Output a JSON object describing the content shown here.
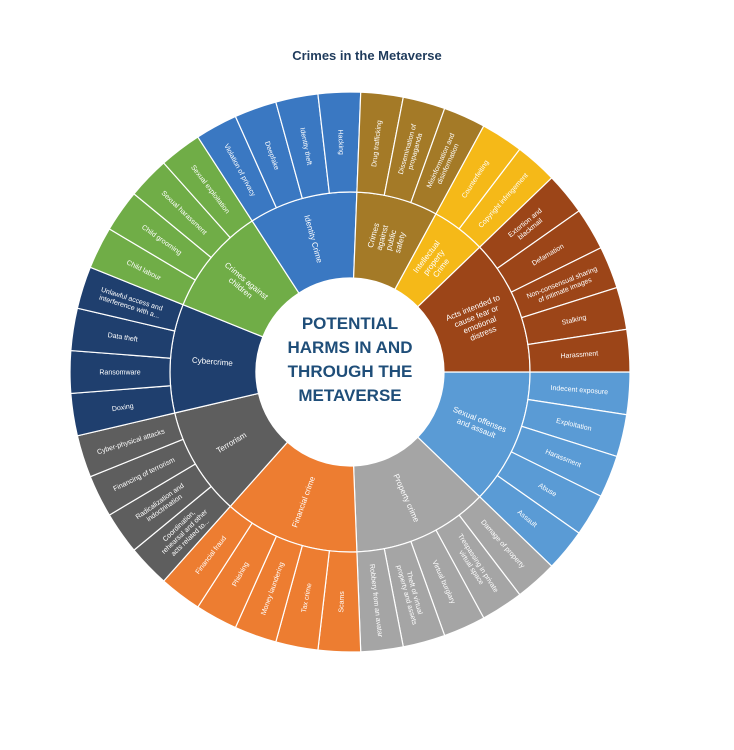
{
  "title": "Crimes in the Metaverse",
  "center_lines": [
    "POTENTIAL",
    "HARMS IN AND",
    "THROUGH THE",
    "METAVERSE"
  ],
  "categories": [
    {
      "name": "Sexual offenses and assault",
      "color": "#5a9bd5",
      "items": [
        "Indecent exposure",
        "Exploitation",
        "Harassment",
        "Abuse",
        "Assault"
      ]
    },
    {
      "name": "Property crime",
      "color": "#a5a5a5",
      "items": [
        "Damage of property",
        "Trespassing in private virtual space",
        "Virtual burglary",
        "Theft of virtual property and assets",
        "Robbery from an avatar"
      ]
    },
    {
      "name": "Financial crime",
      "color": "#ed7d31",
      "items": [
        "Scams",
        "Tax crime",
        "Money laundering",
        "Phishing",
        "Financial fraud"
      ]
    },
    {
      "name": "Terrorism",
      "color": "#5e5e5e",
      "items": [
        "Coordination, rehearsal and other acts related to...",
        "Radicalization and indoctrination",
        "Financing of terrorism",
        "Cyber-physical attacks"
      ]
    },
    {
      "name": "Cybercrime",
      "color": "#1f3f6e",
      "items": [
        "Doxing",
        "Ransomware",
        "Data theft",
        "Unlawful access and interference with a..."
      ]
    },
    {
      "name": "Crimes against children",
      "color": "#70ad47",
      "items": [
        "Child labour",
        "Child grooming",
        "Sexual harassment",
        "Sexual exploitation"
      ]
    },
    {
      "name": "Identity Crime",
      "color": "#3a78c2",
      "items": [
        "Violation of privacy",
        "Deepfake",
        "Identity theft",
        "Hacking"
      ]
    },
    {
      "name": "Crimes against public safety",
      "color": "#a47a27",
      "items": [
        "Drug trafficking",
        "Dissemination of propaganda",
        "Misinformation and disinformation"
      ]
    },
    {
      "name": "Intellectual property Crime",
      "color": "#f5b918",
      "items": [
        "Counterfeiting",
        "Copyright infringement"
      ]
    },
    {
      "name": "Acts intended to cause fear or emotional distress",
      "color": "#9c4518",
      "items": [
        "Extortion and blackmail",
        "Defamation",
        "Non-consensual sharing of intimate images",
        "Stalking",
        "Harassment"
      ]
    }
  ]
}
